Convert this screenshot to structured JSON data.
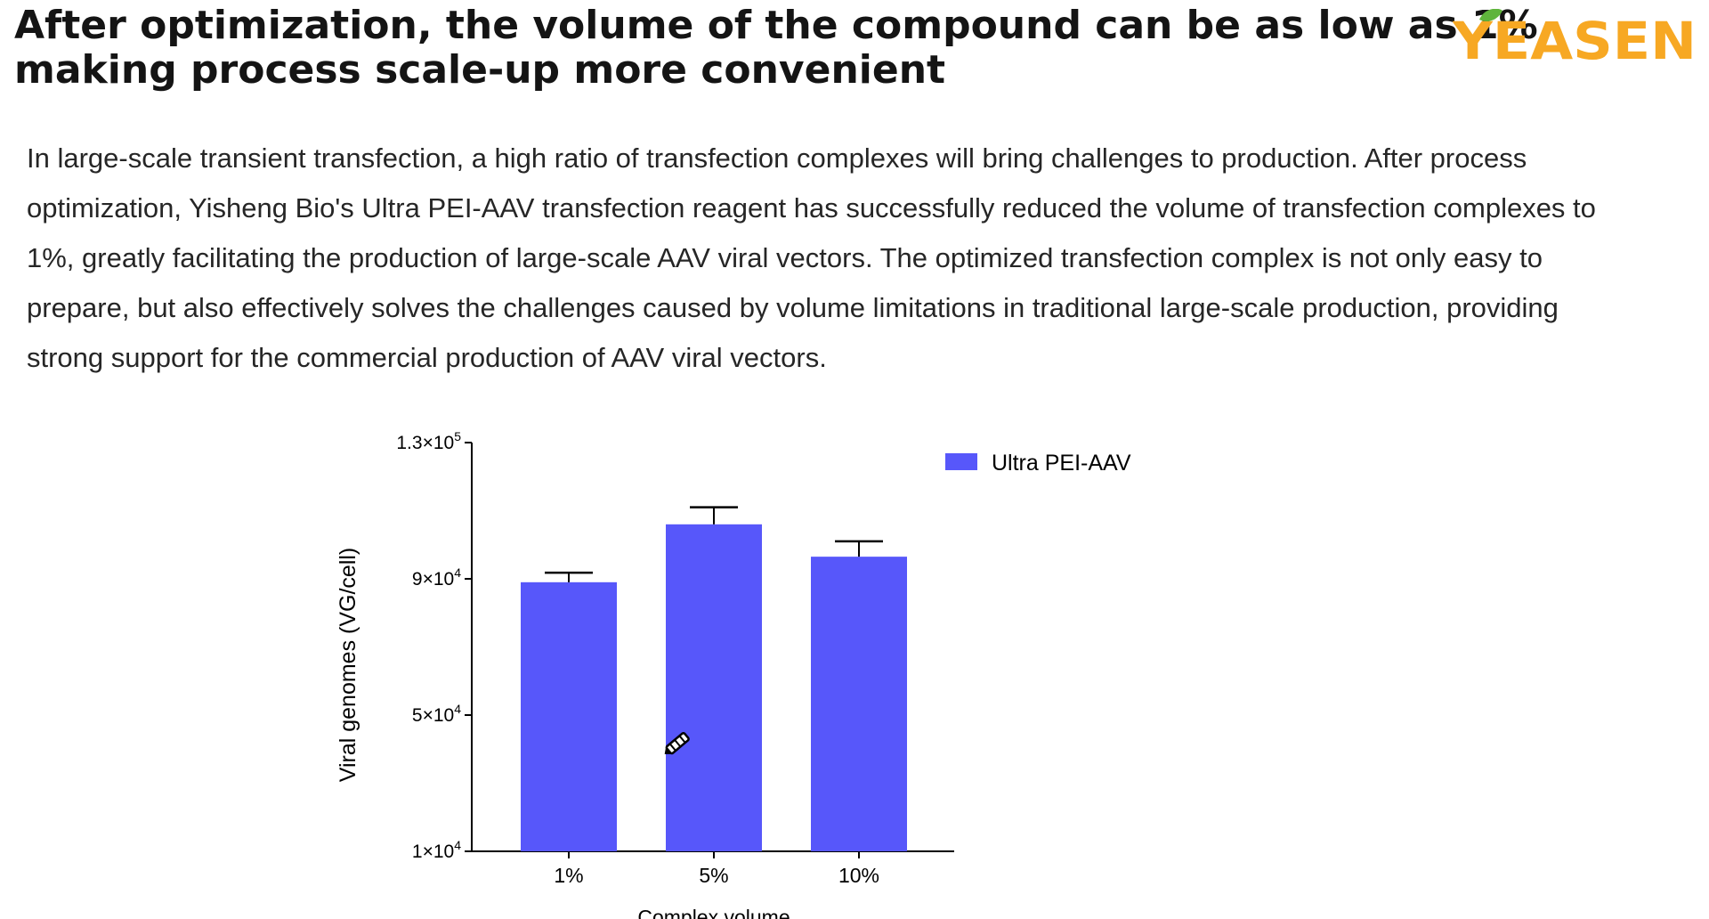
{
  "headline": {
    "line1": "After optimization, the volume of the compound can be as low as 1%,",
    "line2": "making process scale-up more convenient"
  },
  "logo": {
    "text": "YEASEN",
    "color": "#f7a823",
    "leaf_color": "#5fb43c"
  },
  "paragraph": {
    "lines": [
      "In large-scale transient transfection, a high ratio of transfection complexes will bring challenges to production. After process",
      "optimization, Yisheng Bio's Ultra PEI-AAV transfection reagent has successfully reduced the volume of transfection complexes to",
      "1%, greatly facilitating the production of large-scale AAV viral vectors. The optimized transfection complex is not only easy to",
      "prepare, but also effectively solves the challenges caused by volume limitations in traditional large-scale production, providing",
      "strong support for the commercial production of AAV viral vectors."
    ]
  },
  "chart_data": {
    "type": "bar",
    "categories": [
      "1%",
      "5%",
      "10%"
    ],
    "series": [
      {
        "name": "Ultra PEI-AAV",
        "values": [
          89000,
          106000,
          96500
        ],
        "error": [
          2800,
          5000,
          4500
        ],
        "color": "#5757fa"
      }
    ],
    "xlabel": "Complex volume",
    "ylabel": "Viral genomes (VG/cell)",
    "ylim": [
      10000,
      130000
    ],
    "yticks": [
      10000,
      50000,
      90000,
      130000
    ],
    "ytick_labels": [
      {
        "base": "1×10",
        "exp": "4"
      },
      {
        "base": "5×10",
        "exp": "4"
      },
      {
        "base": "9×10",
        "exp": "4"
      },
      {
        "base": "1.3×10",
        "exp": "5"
      }
    ],
    "legend_position": "top-right",
    "grid": false
  },
  "cursor": {
    "icon": "pen-cursor-icon"
  }
}
